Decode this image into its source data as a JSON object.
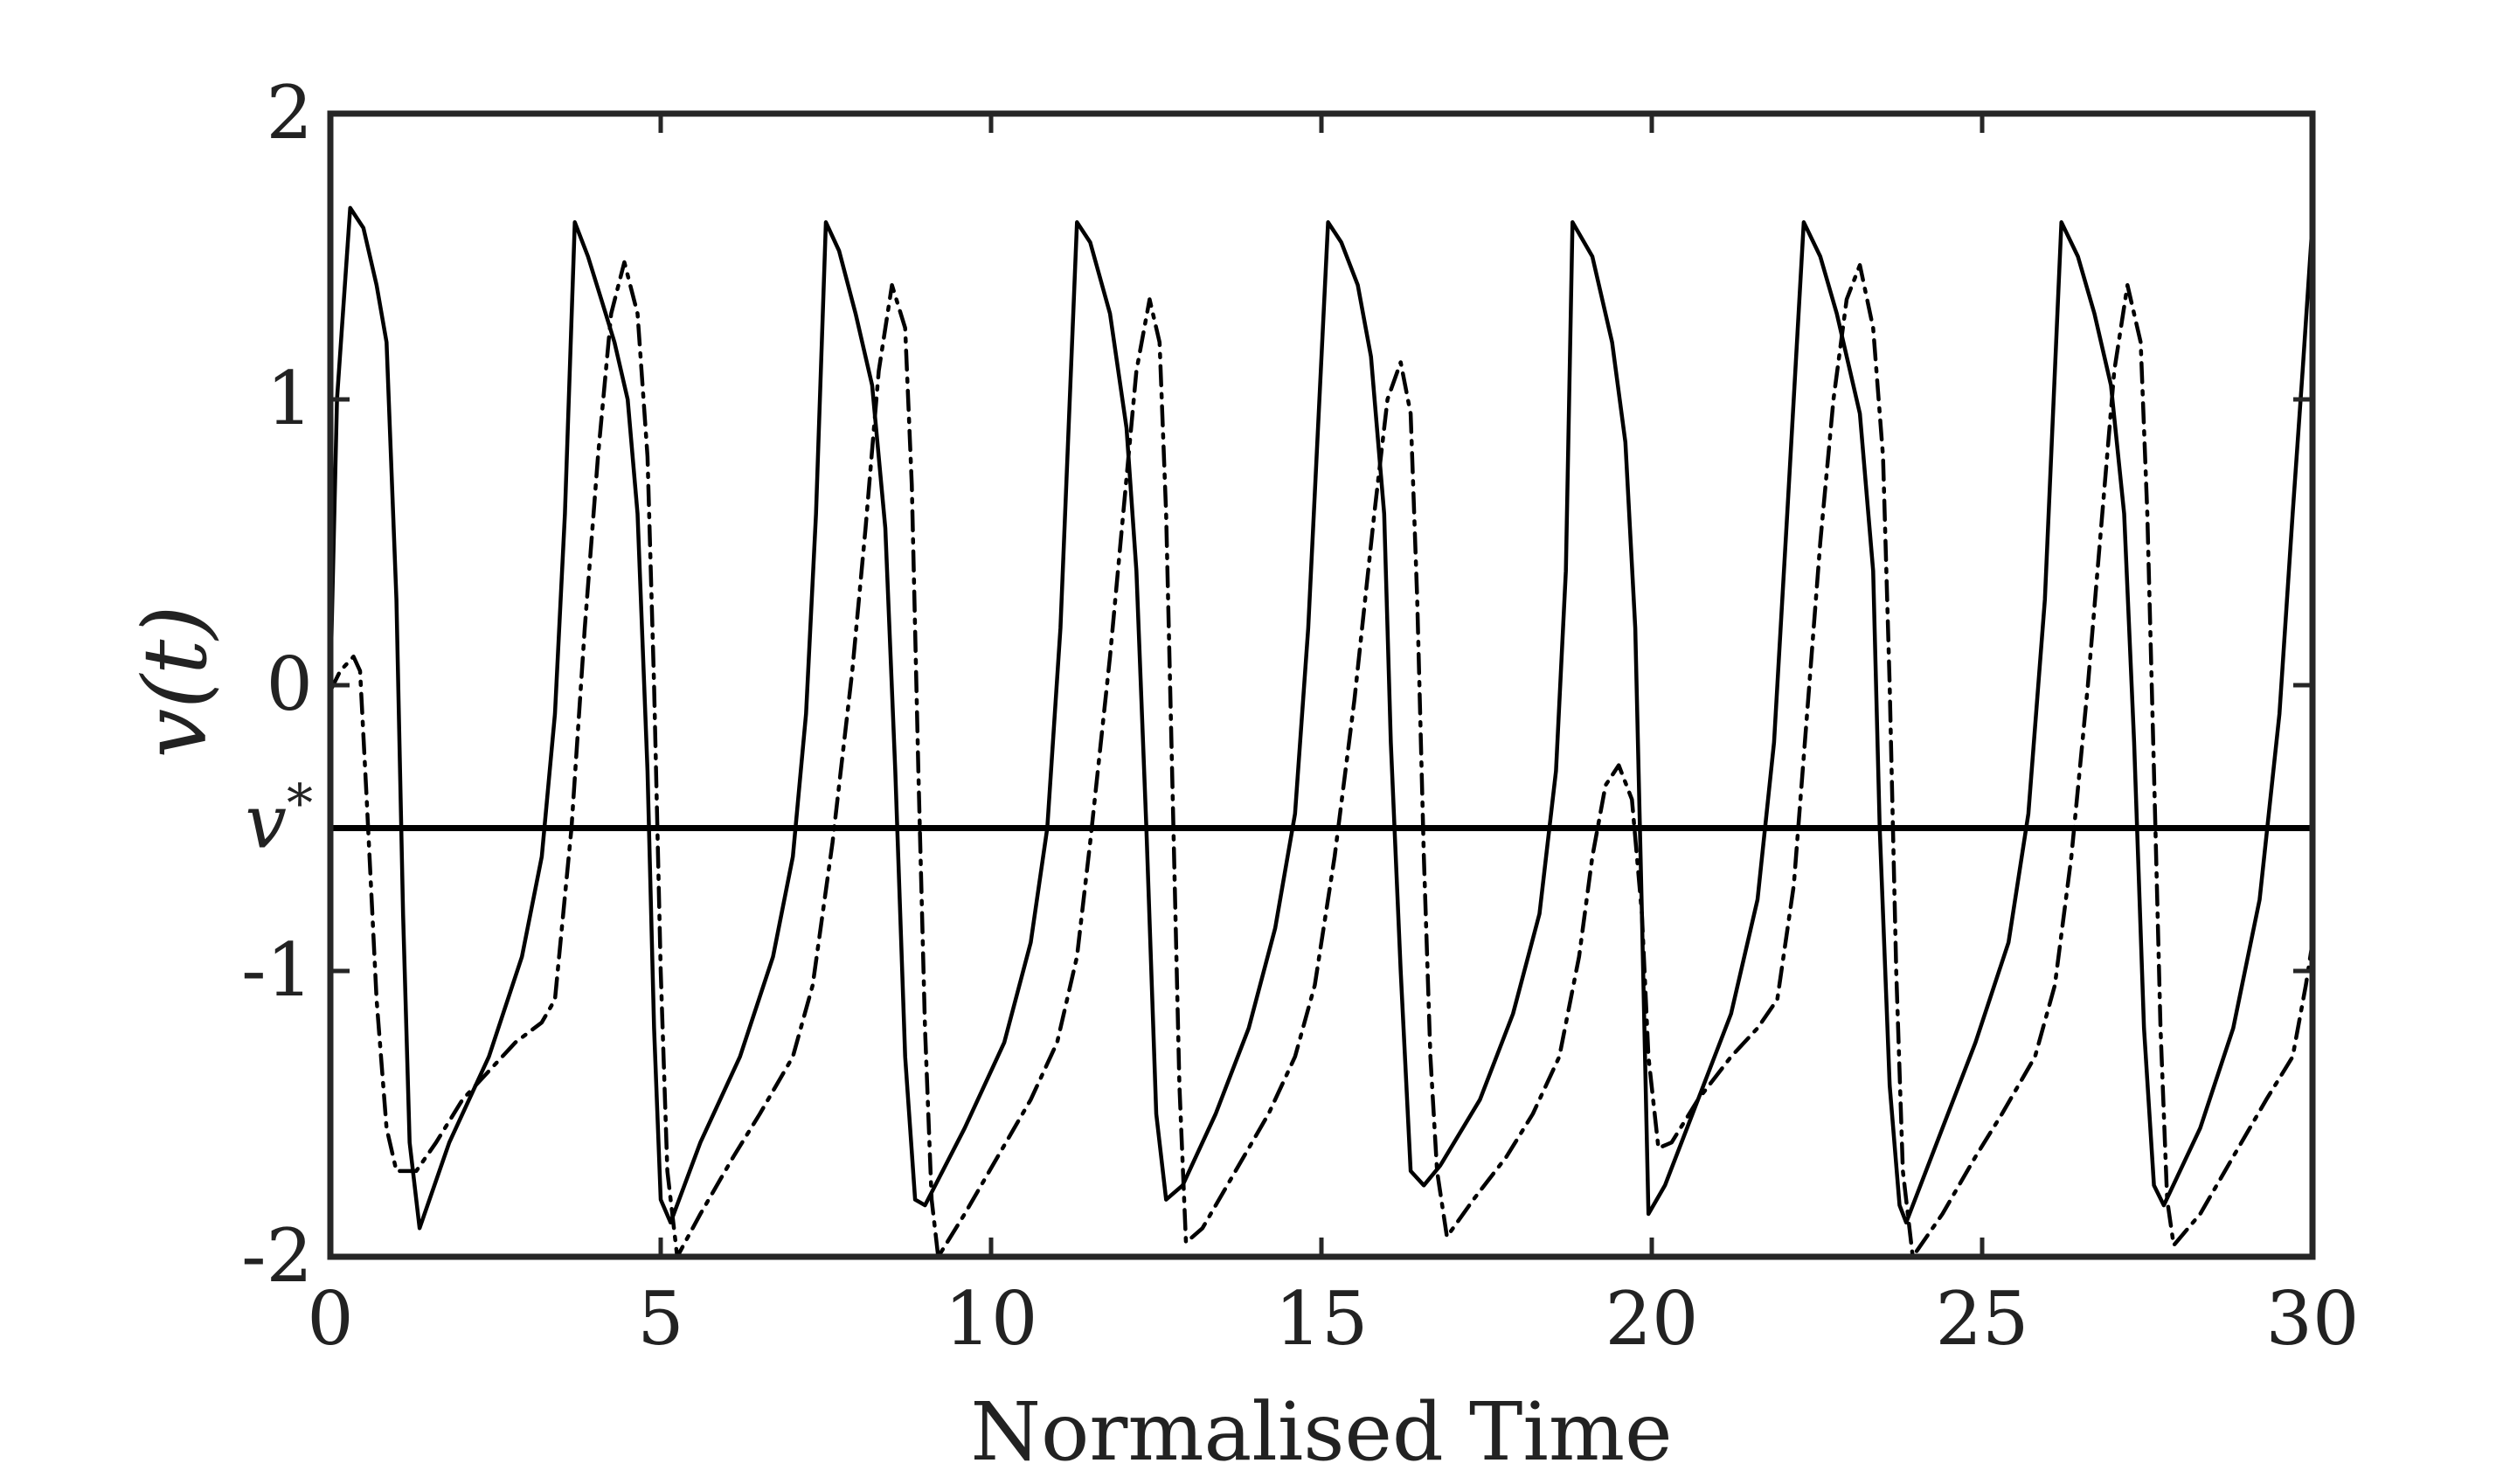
{
  "chart_data": {
    "type": "line",
    "title": "",
    "xlabel": "Normalised Time",
    "ylabel": "v(t)",
    "xlim": [
      0,
      30
    ],
    "ylim": [
      -2,
      2
    ],
    "xticks": [
      0,
      5,
      10,
      15,
      20,
      25,
      30
    ],
    "xtick_labels": [
      "0",
      "5",
      "10",
      "15",
      "20",
      "25",
      "30"
    ],
    "yticks": [
      -2,
      -1,
      0,
      1,
      2
    ],
    "ytick_labels": [
      "-2",
      "-1",
      "0",
      "1",
      "2"
    ],
    "grid": false,
    "legend": "none",
    "reference_line": {
      "label": "v*",
      "y": -0.5
    },
    "series": [
      {
        "style": "solid",
        "color": "#000000",
        "points": [
          [
            0,
            0
          ],
          [
            0.1,
            1.0
          ],
          [
            0.3,
            1.67
          ],
          [
            0.5,
            1.6
          ],
          [
            0.7,
            1.4
          ],
          [
            0.85,
            1.2
          ],
          [
            1.0,
            0.3
          ],
          [
            1.1,
            -0.8
          ],
          [
            1.2,
            -1.6
          ],
          [
            1.35,
            -1.9
          ],
          [
            1.8,
            -1.6
          ],
          [
            2.4,
            -1.3
          ],
          [
            2.9,
            -0.95
          ],
          [
            3.2,
            -0.6
          ],
          [
            3.4,
            -0.1
          ],
          [
            3.55,
            0.6
          ],
          [
            3.7,
            1.62
          ],
          [
            3.9,
            1.5
          ],
          [
            4.1,
            1.35
          ],
          [
            4.3,
            1.2
          ],
          [
            4.5,
            1.0
          ],
          [
            4.65,
            0.6
          ],
          [
            4.8,
            -0.3
          ],
          [
            4.9,
            -1.2
          ],
          [
            5.0,
            -1.8
          ],
          [
            5.15,
            -1.88
          ],
          [
            5.6,
            -1.6
          ],
          [
            6.2,
            -1.3
          ],
          [
            6.7,
            -0.95
          ],
          [
            7.0,
            -0.6
          ],
          [
            7.2,
            -0.1
          ],
          [
            7.35,
            0.6
          ],
          [
            7.5,
            1.62
          ],
          [
            7.7,
            1.52
          ],
          [
            7.95,
            1.3
          ],
          [
            8.2,
            1.05
          ],
          [
            8.4,
            0.55
          ],
          [
            8.55,
            -0.3
          ],
          [
            8.7,
            -1.3
          ],
          [
            8.85,
            -1.8
          ],
          [
            9.0,
            -1.82
          ],
          [
            9.6,
            -1.55
          ],
          [
            10.2,
            -1.25
          ],
          [
            10.6,
            -0.9
          ],
          [
            10.85,
            -0.5
          ],
          [
            11.05,
            0.2
          ],
          [
            11.3,
            1.62
          ],
          [
            11.5,
            1.55
          ],
          [
            11.8,
            1.3
          ],
          [
            12.05,
            0.9
          ],
          [
            12.2,
            0.4
          ],
          [
            12.35,
            -0.5
          ],
          [
            12.5,
            -1.5
          ],
          [
            12.65,
            -1.8
          ],
          [
            12.9,
            -1.75
          ],
          [
            13.4,
            -1.5
          ],
          [
            13.9,
            -1.2
          ],
          [
            14.3,
            -0.85
          ],
          [
            14.6,
            -0.45
          ],
          [
            14.8,
            0.2
          ],
          [
            15.1,
            1.62
          ],
          [
            15.3,
            1.55
          ],
          [
            15.55,
            1.4
          ],
          [
            15.75,
            1.15
          ],
          [
            15.95,
            0.6
          ],
          [
            16.05,
            -0.2
          ],
          [
            16.2,
            -1.0
          ],
          [
            16.35,
            -1.7
          ],
          [
            16.55,
            -1.75
          ],
          [
            16.8,
            -1.68
          ],
          [
            17.4,
            -1.45
          ],
          [
            17.9,
            -1.15
          ],
          [
            18.3,
            -0.8
          ],
          [
            18.55,
            -0.3
          ],
          [
            18.7,
            0.4
          ],
          [
            18.8,
            1.62
          ],
          [
            19.1,
            1.5
          ],
          [
            19.4,
            1.2
          ],
          [
            19.6,
            0.85
          ],
          [
            19.75,
            0.2
          ],
          [
            19.85,
            -0.8
          ],
          [
            19.95,
            -1.85
          ],
          [
            20.2,
            -1.75
          ],
          [
            20.7,
            -1.45
          ],
          [
            21.2,
            -1.15
          ],
          [
            21.6,
            -0.75
          ],
          [
            21.85,
            -0.2
          ],
          [
            22.05,
            0.6
          ],
          [
            22.3,
            1.62
          ],
          [
            22.55,
            1.5
          ],
          [
            22.8,
            1.3
          ],
          [
            23.0,
            1.1
          ],
          [
            23.15,
            0.95
          ],
          [
            23.35,
            0.4
          ],
          [
            23.45,
            -0.5
          ],
          [
            23.6,
            -1.4
          ],
          [
            23.75,
            -1.82
          ],
          [
            23.85,
            -1.88
          ],
          [
            24.4,
            -1.55
          ],
          [
            24.9,
            -1.25
          ],
          [
            25.4,
            -0.9
          ],
          [
            25.7,
            -0.45
          ],
          [
            25.95,
            0.3
          ],
          [
            26.2,
            1.62
          ],
          [
            26.45,
            1.5
          ],
          [
            26.7,
            1.3
          ],
          [
            26.95,
            1.05
          ],
          [
            27.15,
            0.6
          ],
          [
            27.3,
            -0.2
          ],
          [
            27.45,
            -1.2
          ],
          [
            27.6,
            -1.75
          ],
          [
            27.75,
            -1.82
          ],
          [
            28.3,
            -1.55
          ],
          [
            28.8,
            -1.2
          ],
          [
            29.2,
            -0.75
          ],
          [
            29.5,
            -0.1
          ],
          [
            29.7,
            0.6
          ],
          [
            29.85,
            1.1
          ],
          [
            30,
            1.62
          ]
        ]
      },
      {
        "style": "dash-dot",
        "color": "#000000",
        "points": [
          [
            0,
            -0.02
          ],
          [
            0.15,
            0.05
          ],
          [
            0.35,
            0.1
          ],
          [
            0.45,
            0.05
          ],
          [
            0.55,
            -0.4
          ],
          [
            0.7,
            -1.1
          ],
          [
            0.85,
            -1.55
          ],
          [
            1.0,
            -1.7
          ],
          [
            1.3,
            -1.7
          ],
          [
            1.6,
            -1.6
          ],
          [
            2.0,
            -1.45
          ],
          [
            2.4,
            -1.35
          ],
          [
            2.8,
            -1.25
          ],
          [
            3.2,
            -1.18
          ],
          [
            3.4,
            -1.1
          ],
          [
            3.65,
            -0.5
          ],
          [
            3.85,
            0.2
          ],
          [
            4.05,
            0.8
          ],
          [
            4.25,
            1.3
          ],
          [
            4.45,
            1.48
          ],
          [
            4.65,
            1.3
          ],
          [
            4.8,
            0.8
          ],
          [
            4.9,
            0.0
          ],
          [
            5.0,
            -1.0
          ],
          [
            5.1,
            -1.7
          ],
          [
            5.25,
            -2.0
          ],
          [
            5.6,
            -1.85
          ],
          [
            6.1,
            -1.65
          ],
          [
            6.5,
            -1.5
          ],
          [
            7.0,
            -1.3
          ],
          [
            7.3,
            -1.05
          ],
          [
            7.6,
            -0.55
          ],
          [
            7.9,
            0.05
          ],
          [
            8.1,
            0.55
          ],
          [
            8.3,
            1.1
          ],
          [
            8.5,
            1.4
          ],
          [
            8.7,
            1.25
          ],
          [
            8.8,
            0.7
          ],
          [
            8.9,
            -0.3
          ],
          [
            9.0,
            -1.2
          ],
          [
            9.1,
            -1.8
          ],
          [
            9.2,
            -2.0
          ],
          [
            9.6,
            -1.85
          ],
          [
            10.1,
            -1.65
          ],
          [
            10.6,
            -1.45
          ],
          [
            11.0,
            -1.25
          ],
          [
            11.3,
            -0.95
          ],
          [
            11.5,
            -0.55
          ],
          [
            11.8,
            0.1
          ],
          [
            12.0,
            0.6
          ],
          [
            12.2,
            1.1
          ],
          [
            12.4,
            1.35
          ],
          [
            12.55,
            1.2
          ],
          [
            12.65,
            0.6
          ],
          [
            12.75,
            -0.4
          ],
          [
            12.85,
            -1.4
          ],
          [
            12.95,
            -1.95
          ],
          [
            13.2,
            -1.9
          ],
          [
            13.7,
            -1.7
          ],
          [
            14.2,
            -1.5
          ],
          [
            14.6,
            -1.3
          ],
          [
            14.9,
            -1.05
          ],
          [
            15.2,
            -0.6
          ],
          [
            15.5,
            -0.05
          ],
          [
            15.8,
            0.6
          ],
          [
            16.0,
            1.0
          ],
          [
            16.2,
            1.13
          ],
          [
            16.35,
            0.95
          ],
          [
            16.45,
            0.3
          ],
          [
            16.55,
            -0.6
          ],
          [
            16.65,
            -1.3
          ],
          [
            16.75,
            -1.7
          ],
          [
            16.9,
            -1.93
          ],
          [
            17.3,
            -1.8
          ],
          [
            17.8,
            -1.65
          ],
          [
            18.2,
            -1.5
          ],
          [
            18.6,
            -1.3
          ],
          [
            18.9,
            -0.95
          ],
          [
            19.1,
            -0.6
          ],
          [
            19.3,
            -0.35
          ],
          [
            19.5,
            -0.28
          ],
          [
            19.7,
            -0.4
          ],
          [
            19.85,
            -0.8
          ],
          [
            19.95,
            -1.3
          ],
          [
            20.1,
            -1.62
          ],
          [
            20.3,
            -1.6
          ],
          [
            20.7,
            -1.45
          ],
          [
            21.2,
            -1.3
          ],
          [
            21.6,
            -1.2
          ],
          [
            21.9,
            -1.1
          ],
          [
            22.15,
            -0.7
          ],
          [
            22.35,
            -0.1
          ],
          [
            22.55,
            0.5
          ],
          [
            22.75,
            1.0
          ],
          [
            22.95,
            1.35
          ],
          [
            23.15,
            1.47
          ],
          [
            23.35,
            1.25
          ],
          [
            23.5,
            0.8
          ],
          [
            23.6,
            0.0
          ],
          [
            23.7,
            -1.0
          ],
          [
            23.8,
            -1.7
          ],
          [
            23.95,
            -2.0
          ],
          [
            24.4,
            -1.85
          ],
          [
            24.9,
            -1.65
          ],
          [
            25.3,
            -1.5
          ],
          [
            25.8,
            -1.3
          ],
          [
            26.1,
            -1.05
          ],
          [
            26.35,
            -0.6
          ],
          [
            26.6,
            0.0
          ],
          [
            26.8,
            0.55
          ],
          [
            27.0,
            1.1
          ],
          [
            27.2,
            1.4
          ],
          [
            27.4,
            1.2
          ],
          [
            27.5,
            0.6
          ],
          [
            27.6,
            -0.3
          ],
          [
            27.7,
            -1.2
          ],
          [
            27.8,
            -1.8
          ],
          [
            27.9,
            -1.96
          ],
          [
            28.3,
            -1.85
          ],
          [
            28.8,
            -1.65
          ],
          [
            29.3,
            -1.45
          ],
          [
            29.7,
            -1.3
          ],
          [
            29.9,
            -1.05
          ],
          [
            30,
            -0.9
          ]
        ]
      }
    ]
  }
}
